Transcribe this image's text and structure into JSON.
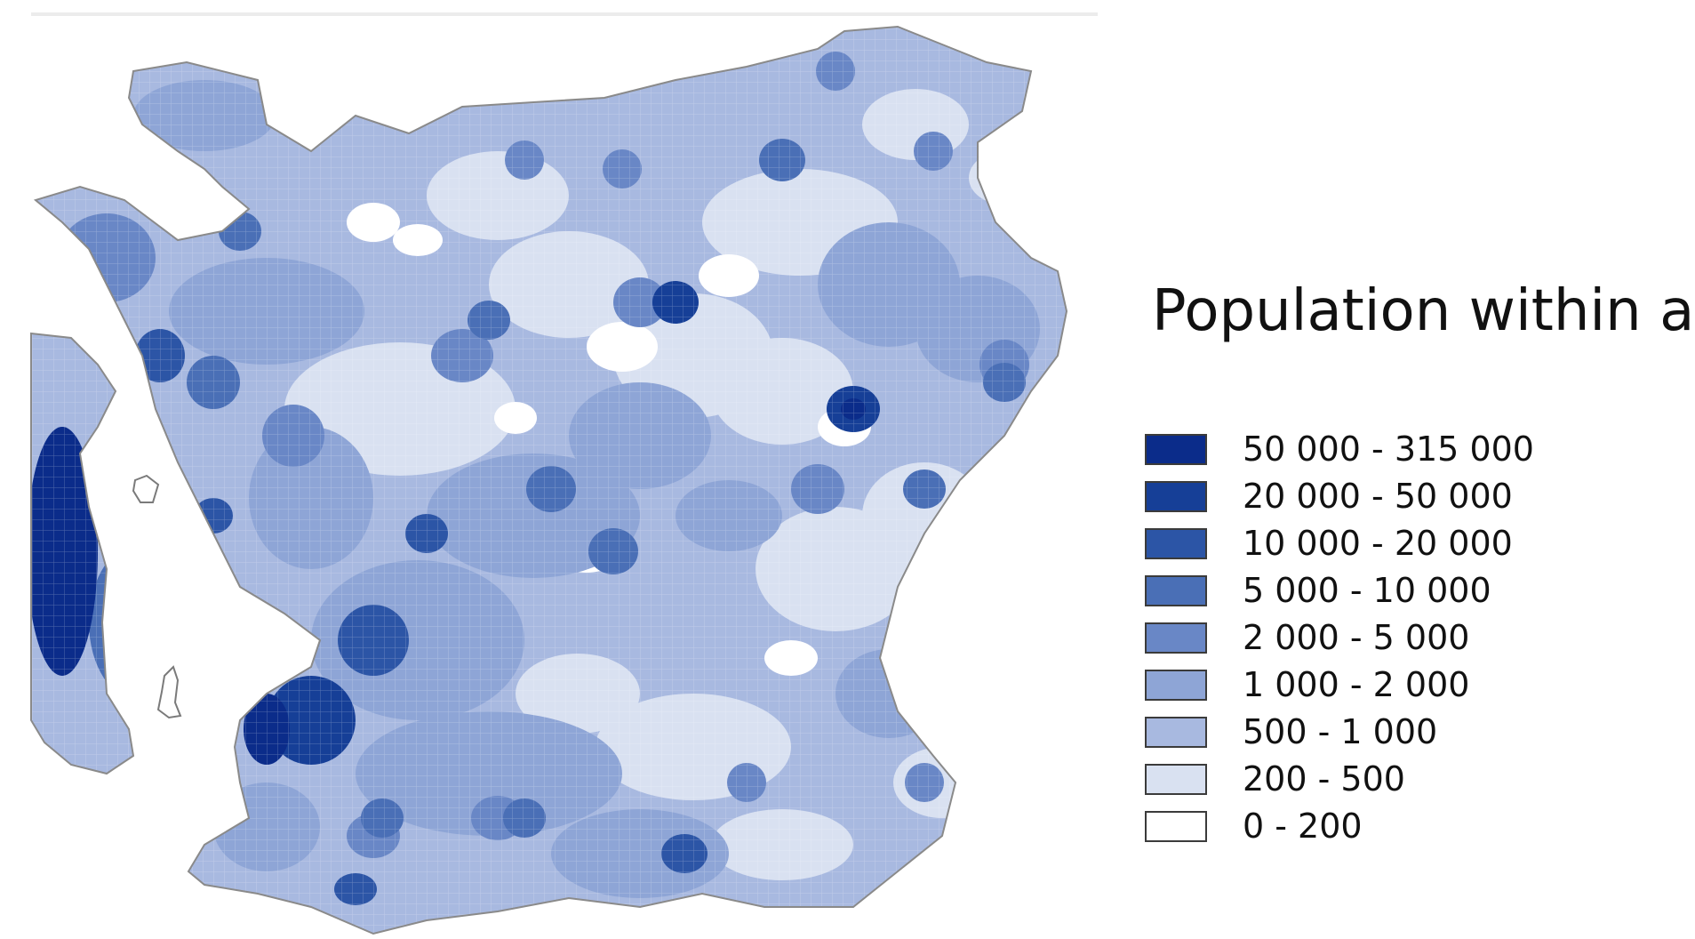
{
  "map": {
    "title": "Population within a",
    "legend": [
      {
        "label": "50 000 - 315 000",
        "color": "#0b2c8a"
      },
      {
        "label": "20 000 - 50 000",
        "color": "#163f97"
      },
      {
        "label": "10 000 - 20 000",
        "color": "#2c55a6"
      },
      {
        "label": "5 000 - 10 000",
        "color": "#4a6fb6"
      },
      {
        "label": "2 000 - 5 000",
        "color": "#6987c6"
      },
      {
        "label": "1 000 - 2 000",
        "color": "#8ea5d6"
      },
      {
        "label": "500 - 1 000",
        "color": "#a8b9e0"
      },
      {
        "label": "200 - 500",
        "color": "#d9e1f1"
      },
      {
        "label": "0 - 200",
        "color": "#ffffff"
      }
    ]
  }
}
